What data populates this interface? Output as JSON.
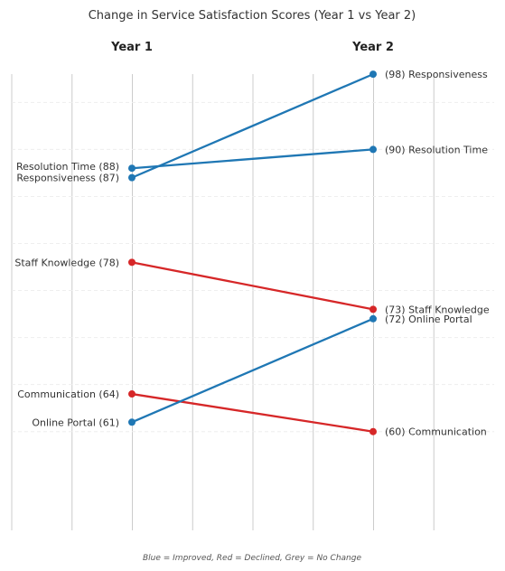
{
  "chart_data": {
    "type": "slope",
    "title": "Change in Service Satisfaction Scores (Year 1 vs Year 2)",
    "x_labels": [
      "Year 1",
      "Year 2"
    ],
    "footnote": "Blue = Improved, Red = Declined, Grey = No Change",
    "ylim": [
      56,
      102
    ],
    "grid": true,
    "series": [
      {
        "name": "Resolution Time",
        "year1": 88,
        "year2": 90,
        "status": "improved",
        "label_y1": "Resolution Time (88)",
        "label_y2": "(90) Resolution Time"
      },
      {
        "name": "Responsiveness",
        "year1": 87,
        "year2": 98,
        "status": "improved",
        "label_y1": "Responsiveness (87)",
        "label_y2": "(98) Responsiveness"
      },
      {
        "name": "Staff Knowledge",
        "year1": 78,
        "year2": 73,
        "status": "declined",
        "label_y1": "Staff Knowledge (78)",
        "label_y2": "(73) Staff Knowledge"
      },
      {
        "name": "Communication",
        "year1": 64,
        "year2": 60,
        "status": "declined",
        "label_y1": "Communication (64)",
        "label_y2": "(60) Communication"
      },
      {
        "name": "Online Portal",
        "year1": 61,
        "year2": 72,
        "status": "improved",
        "label_y1": "Online Portal (61)",
        "label_y2": "(72) Online Portal"
      }
    ],
    "colors": {
      "improved": "#1f77b4",
      "declined": "#d62728",
      "no_change": "#999999"
    }
  }
}
